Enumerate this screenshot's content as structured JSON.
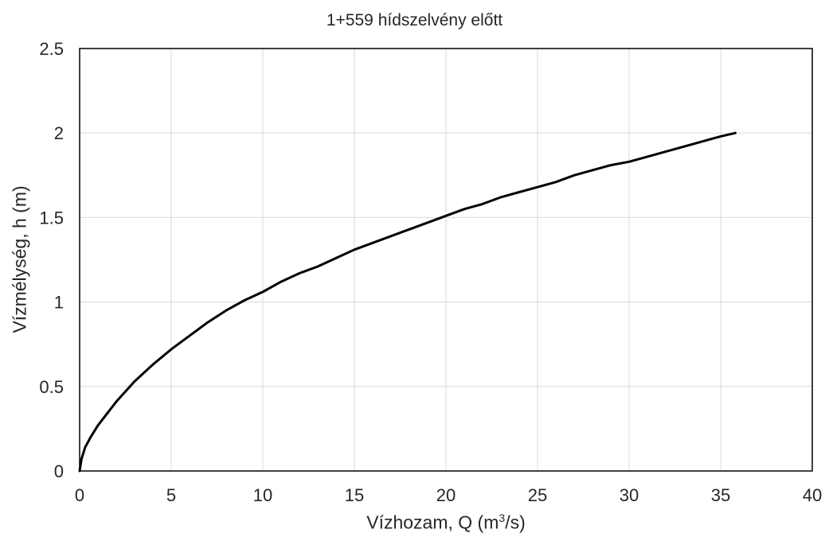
{
  "chart_data": {
    "type": "line",
    "title": "1+559 hídszelvény előtt",
    "xlabel_main": "Vízhozam, Q (m",
    "xlabel_sup": "3",
    "xlabel_end": "/s)",
    "ylabel": "Vízmélység, h (m)",
    "xlim": [
      0,
      40
    ],
    "ylim": [
      0,
      2.5
    ],
    "x_ticks": [
      "0",
      "5",
      "10",
      "15",
      "20",
      "25",
      "30",
      "35",
      "40"
    ],
    "y_ticks": [
      "0",
      "0.5",
      "1",
      "1.5",
      "2",
      "2.5"
    ],
    "grid": true,
    "series": [
      {
        "color": "#000000",
        "x": [
          0,
          0.1,
          0.3,
          0.6,
          1,
          1.5,
          2,
          3,
          4,
          5,
          6,
          7,
          8,
          9,
          10,
          11,
          12,
          13,
          14,
          15,
          16,
          17,
          18,
          19,
          20,
          21,
          22,
          23,
          24,
          25,
          26,
          27,
          28,
          29,
          30,
          31,
          32,
          33,
          34,
          35,
          35.8
        ],
        "y": [
          0,
          0.07,
          0.14,
          0.2,
          0.27,
          0.34,
          0.41,
          0.53,
          0.63,
          0.72,
          0.8,
          0.88,
          0.95,
          1.01,
          1.06,
          1.12,
          1.17,
          1.21,
          1.26,
          1.31,
          1.35,
          1.39,
          1.43,
          1.47,
          1.51,
          1.55,
          1.58,
          1.62,
          1.65,
          1.68,
          1.71,
          1.75,
          1.78,
          1.81,
          1.83,
          1.86,
          1.89,
          1.92,
          1.95,
          1.98,
          2.0
        ]
      }
    ]
  }
}
